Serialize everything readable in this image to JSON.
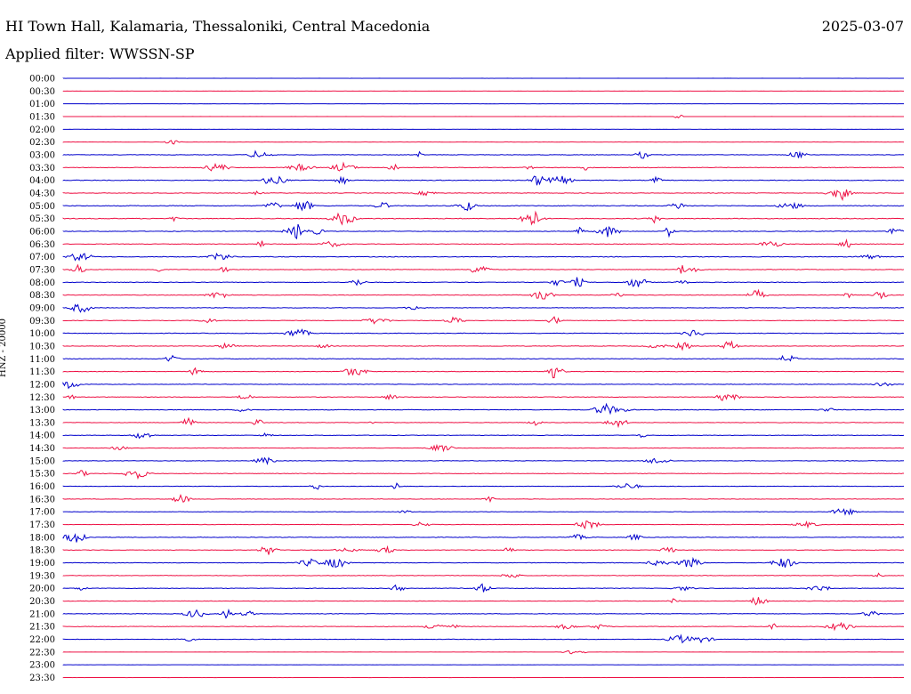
{
  "header": {
    "station": "HI Town Hall, Kalamaria, Thessaloniki, Central Macedonia",
    "date": "2025-03-07",
    "filter": "Applied filter: WWSSN-SP"
  },
  "chart_data": {
    "type": "line",
    "title": "HI Town Hall, Kalamaria, Thessaloniki, Central Macedonia",
    "ylabel": "HNZ - 20000",
    "xlabel": "",
    "grid": false,
    "colors": [
      "#0000cc",
      "#ee1144"
    ],
    "categories": [
      "00:00",
      "00:30",
      "01:00",
      "01:30",
      "02:00",
      "02:30",
      "03:00",
      "03:30",
      "04:00",
      "04:30",
      "05:00",
      "05:30",
      "06:00",
      "06:30",
      "07:00",
      "07:30",
      "08:00",
      "08:30",
      "09:00",
      "09:30",
      "10:00",
      "10:30",
      "11:00",
      "11:30",
      "12:00",
      "12:30",
      "13:00",
      "13:30",
      "14:00",
      "14:30",
      "15:00",
      "15:30",
      "16:00",
      "16:30",
      "17:00",
      "17:30",
      "18:00",
      "18:30",
      "19:00",
      "19:30",
      "20:00",
      "20:30",
      "21:00",
      "21:30",
      "22:00",
      "22:30",
      "23:00",
      "23:30"
    ],
    "noise_level": [
      0.2,
      0.1,
      0.2,
      0.2,
      0.3,
      0.4,
      0.8,
      0.8,
      1.0,
      0.9,
      1.1,
      1.1,
      0.9,
      0.8,
      1.0,
      0.9,
      0.9,
      0.9,
      0.8,
      0.8,
      0.9,
      0.8,
      0.9,
      0.8,
      0.8,
      0.8,
      0.9,
      0.8,
      0.7,
      0.7,
      0.8,
      0.8,
      0.7,
      0.7,
      0.6,
      0.7,
      0.9,
      0.7,
      0.8,
      0.8,
      0.8,
      0.7,
      0.8,
      0.8,
      0.7,
      0.2,
      0.2,
      0.2
    ]
  }
}
